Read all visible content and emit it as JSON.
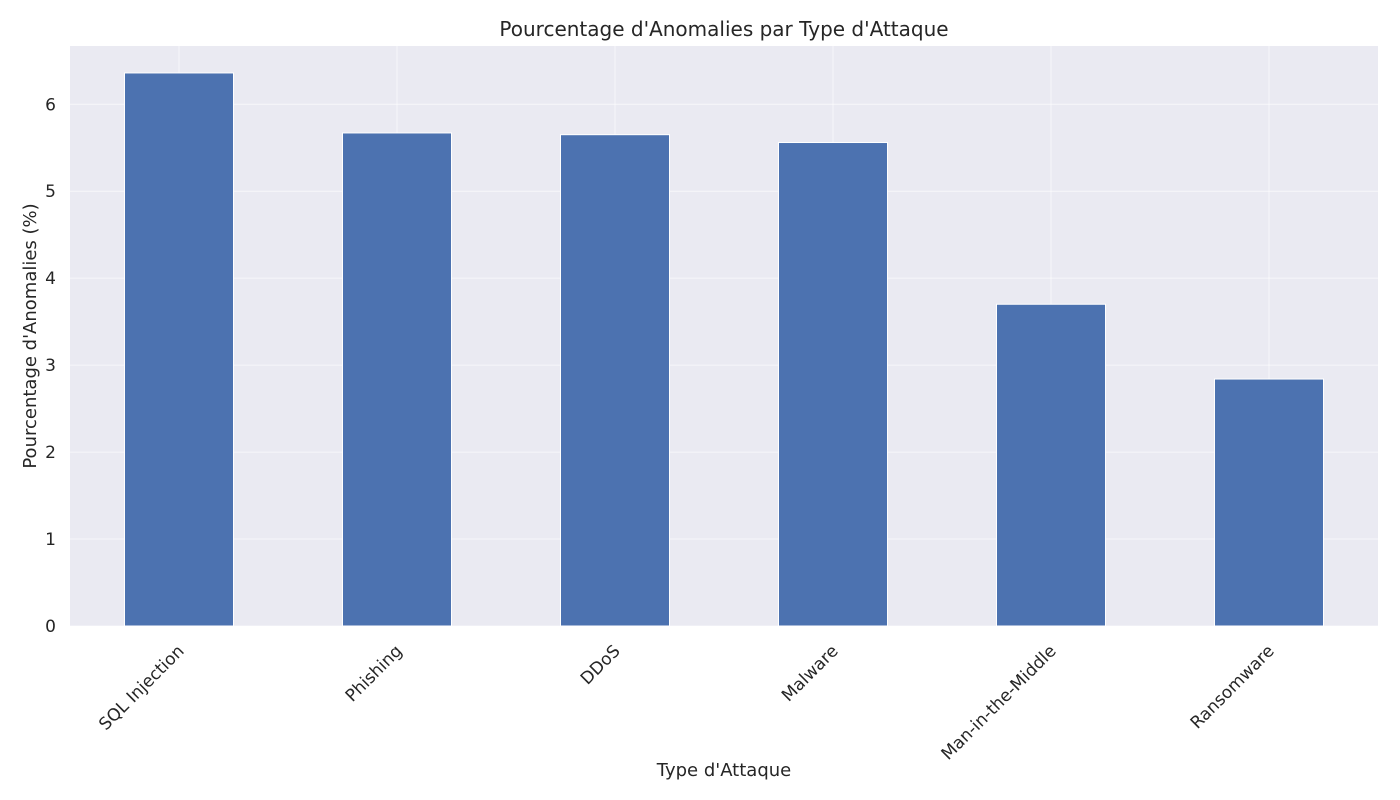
{
  "chart_data": {
    "type": "bar",
    "title": "Pourcentage d'Anomalies par Type d'Attaque",
    "xlabel": "Type d'Attaque",
    "ylabel": "Pourcentage d'Anomalies (%)",
    "categories": [
      "SQL Injection",
      "Phishing",
      "DDoS",
      "Malware",
      "Man-in-the-Middle",
      "Ransomware"
    ],
    "values": [
      6.36,
      5.67,
      5.65,
      5.56,
      3.7,
      2.84
    ],
    "ylim": [
      0,
      6.67
    ],
    "yticks": [
      0,
      1,
      2,
      3,
      4,
      5,
      6
    ],
    "grid": true,
    "legend": "none",
    "colors": {
      "bar": "#4c72b0",
      "bar_edge": "#ffffff",
      "plot_background": "#eaeaf2",
      "grid": "#ffffff"
    }
  }
}
